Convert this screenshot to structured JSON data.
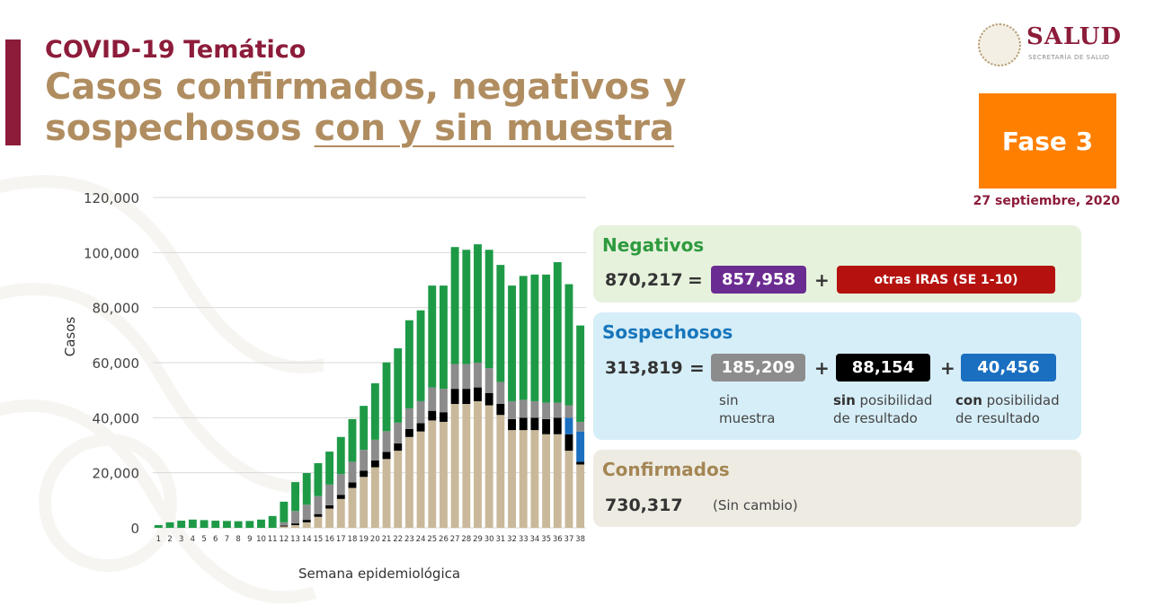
{
  "header": {
    "kicker": "COVID-19 Temático",
    "title_line1": "Casos confirmados, negativos y",
    "title_line2_plain": "sospechosos ",
    "title_line2_underlined": "con y sin muestra"
  },
  "logo": {
    "name": "SALUD",
    "subtitle": "SECRETARÍA DE SALUD"
  },
  "phase": {
    "label": "Fase 3"
  },
  "date": "27 septiembre, 2020",
  "negativos": {
    "title": "Negativos",
    "total": "870,217",
    "eq": "=",
    "plus": "+",
    "part1": "857,958",
    "part2": "otras IRAS (SE 1-10)",
    "colors": {
      "part1": "#6b2c91",
      "part2": "#b5120f"
    }
  },
  "sospechosos": {
    "title": "Sospechosos",
    "total": "313,819",
    "eq": "=",
    "plus1": "+",
    "plus2": "+",
    "part1": "185,209",
    "part2": "88,154",
    "part3": "40,456",
    "cap1_line1": "sin",
    "cap1_line2": "muestra",
    "cap2_bold": "sin",
    "cap2_rest": " posibilidad",
    "cap2_line2": "de resultado",
    "cap3_bold": "con",
    "cap3_rest": " posibilidad",
    "cap3_line2": "de resultado",
    "colors": {
      "part1": "#8c8c8c",
      "part2": "#000000",
      "part3": "#1a6fc0"
    }
  },
  "confirmados": {
    "title": "Confirmados",
    "total": "730,317",
    "note": "(Sin cambio)"
  },
  "chart_data": {
    "type": "bar",
    "stacked": true,
    "xlabel": "Semana epidemiológica",
    "ylabel": "Casos",
    "ylim": [
      0,
      120000
    ],
    "yticks": [
      0,
      20000,
      40000,
      60000,
      80000,
      100000,
      120000
    ],
    "ytick_labels": [
      "0",
      "20,000",
      "40,000",
      "60,000",
      "80,000",
      "100,000",
      "120,000"
    ],
    "grid": true,
    "categories": [
      "1",
      "2",
      "3",
      "4",
      "5",
      "6",
      "7",
      "8",
      "9",
      "10",
      "11",
      "12",
      "13",
      "14",
      "15",
      "16",
      "17",
      "18",
      "19",
      "20",
      "21",
      "22",
      "23",
      "24",
      "25",
      "26",
      "27",
      "28",
      "29",
      "30",
      "31",
      "32",
      "33",
      "34",
      "35",
      "36",
      "37",
      "38"
    ],
    "series": [
      {
        "name": "Confirmados",
        "color": "#c9b99a",
        "values": [
          0,
          0,
          0,
          0,
          0,
          0,
          0,
          0,
          0,
          0,
          0,
          500,
          1000,
          2000,
          4000,
          7000,
          10500,
          14500,
          18500,
          22000,
          25000,
          28000,
          33000,
          35000,
          39000,
          38500,
          45000,
          45000,
          46000,
          44500,
          41000,
          35500,
          35500,
          35500,
          34000,
          34000,
          28000,
          23000
        ]
      },
      {
        "name": "Sospechosos sin posibilidad de resultado",
        "color": "#000000",
        "values": [
          0,
          0,
          0,
          0,
          0,
          0,
          0,
          0,
          0,
          0,
          0,
          300,
          600,
          900,
          1000,
          1200,
          1500,
          2000,
          2300,
          2500,
          2600,
          2700,
          2900,
          3000,
          3500,
          3500,
          5500,
          5500,
          5000,
          4500,
          4000,
          4000,
          4500,
          4500,
          5500,
          6000,
          6000,
          1000
        ]
      },
      {
        "name": "Sospechosos con posibilidad de resultado",
        "color": "#1a6fc0",
        "values": [
          0,
          0,
          0,
          0,
          0,
          0,
          0,
          0,
          0,
          0,
          0,
          0,
          0,
          0,
          0,
          0,
          0,
          0,
          0,
          0,
          0,
          0,
          0,
          0,
          0,
          0,
          0,
          0,
          0,
          0,
          0,
          0,
          0,
          0,
          0,
          0,
          6000,
          11000
        ]
      },
      {
        "name": "Sospechosos sin muestra",
        "color": "#8c8c8c",
        "values": [
          0,
          0,
          0,
          0,
          0,
          0,
          0,
          0,
          0,
          0,
          0,
          1200,
          4500,
          5500,
          6500,
          7500,
          7500,
          7500,
          7500,
          7500,
          7500,
          7500,
          7500,
          8000,
          8500,
          8500,
          9000,
          9000,
          9000,
          9000,
          8000,
          6500,
          6500,
          6000,
          6000,
          5500,
          4500,
          3500
        ]
      },
      {
        "name": "Negativos",
        "color": "#1e9a47",
        "values": [
          1000,
          2000,
          2600,
          3000,
          2800,
          2600,
          2500,
          2400,
          2500,
          3000,
          4300,
          7500,
          10500,
          11500,
          12000,
          12000,
          13500,
          15500,
          16000,
          20500,
          25000,
          27000,
          32000,
          33000,
          37000,
          37500,
          42500,
          41500,
          43000,
          43000,
          42500,
          42000,
          45000,
          46000,
          46500,
          51000,
          44000,
          35000
        ]
      }
    ]
  }
}
